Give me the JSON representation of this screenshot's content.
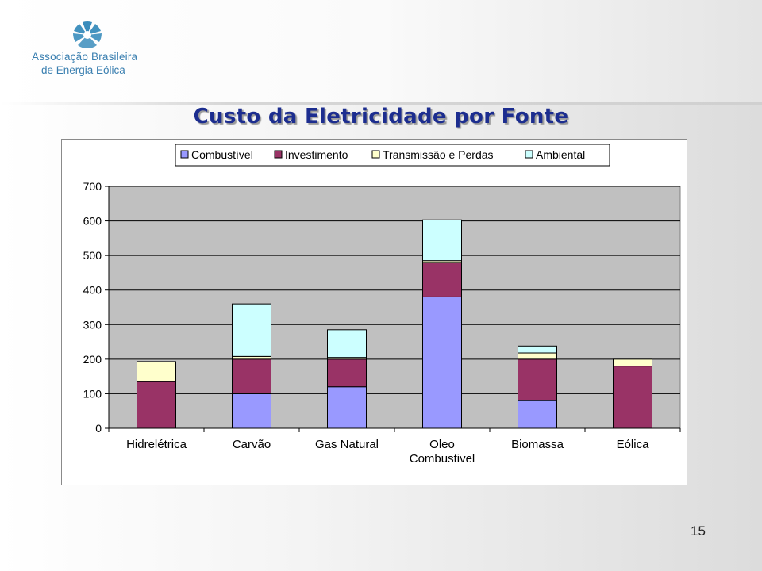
{
  "header": {
    "org_line1": "Associação Brasileira",
    "org_line2": "de Energia Eólica"
  },
  "page": {
    "title": "Custo da Eletricidade por Fonte",
    "number": "15"
  },
  "colors": {
    "combustivel": "#9999ff",
    "investimento": "#993366",
    "transmissao": "#ffffcc",
    "ambiental": "#ccffff",
    "plot_bg": "#c0c0c0",
    "title": "#1c2d8f"
  },
  "icons": {
    "logo": "wind-turbine-fan-icon"
  },
  "chart_data": {
    "type": "bar",
    "stacked": true,
    "categories": [
      "Hidrelétrica",
      "Carvão",
      "Gas Natural",
      "Oleo Combustivel",
      "Biomassa",
      "Eólica"
    ],
    "category_lines": [
      [
        "Hidrelétrica"
      ],
      [
        "Carvão"
      ],
      [
        "Gas Natural"
      ],
      [
        "Oleo",
        "Combustivel"
      ],
      [
        "Biomassa"
      ],
      [
        "Eólica"
      ]
    ],
    "series": [
      {
        "name": "Combustível",
        "values": [
          0,
          100,
          120,
          380,
          80,
          0
        ]
      },
      {
        "name": "Investimento",
        "values": [
          135,
          100,
          80,
          100,
          120,
          180
        ]
      },
      {
        "name": "Transmissão e Perdas",
        "values": [
          58,
          8,
          5,
          5,
          18,
          20
        ]
      },
      {
        "name": "Ambiental",
        "values": [
          0,
          152,
          80,
          118,
          20,
          0
        ]
      }
    ],
    "ylim": [
      0,
      700
    ],
    "yticks": [
      "0",
      "100",
      "200",
      "300",
      "400",
      "500",
      "600",
      "700"
    ],
    "grid": true,
    "legend_position": "top"
  }
}
